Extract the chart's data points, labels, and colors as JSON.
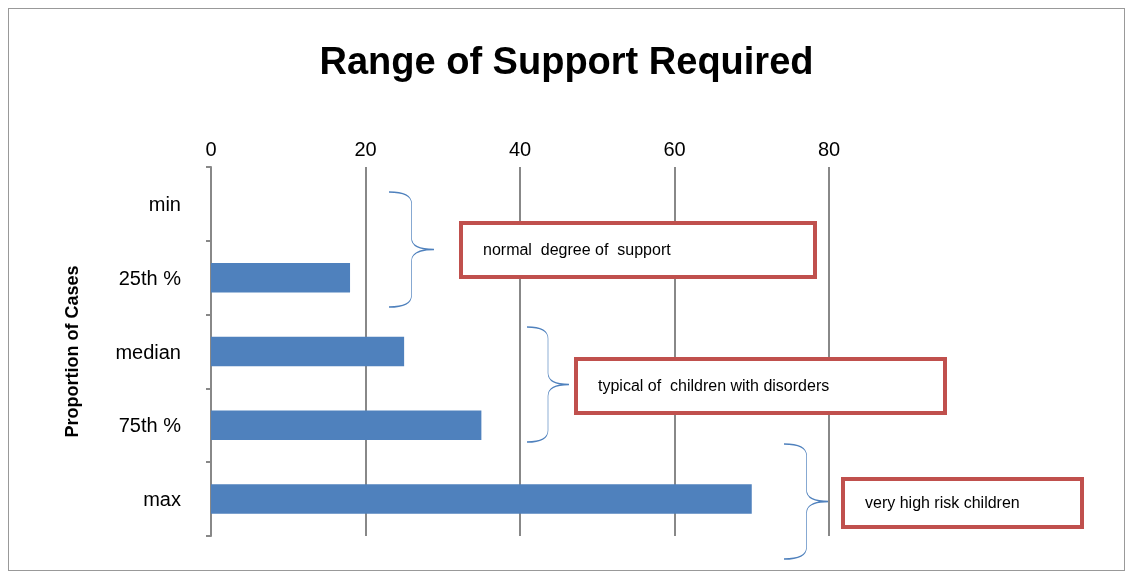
{
  "chart_data": {
    "type": "bar",
    "orientation": "horizontal",
    "title": "Range of Support Required",
    "ylabel": "Proportion of Cases",
    "categories": [
      "min",
      "25th %",
      "median",
      "75th %",
      "max"
    ],
    "values": [
      0,
      18,
      25,
      35,
      70
    ],
    "color": "#4f81bd",
    "xlim": [
      0,
      80
    ],
    "xticks": [
      0,
      20,
      40,
      60,
      80
    ],
    "grid": "x",
    "annotations": [
      "normal  degree of  support",
      "typical of  children with disorders",
      "very high risk children"
    ]
  }
}
